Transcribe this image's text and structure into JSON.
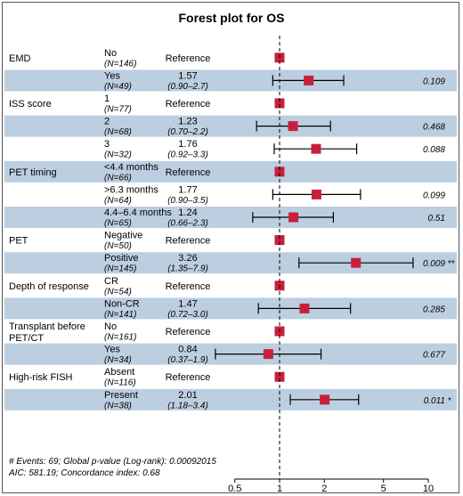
{
  "chart_data": {
    "type": "forest",
    "title": "Forest plot for OS",
    "x_scale": "log",
    "xlim": [
      0.5,
      10
    ],
    "x_ticks": [
      "0.5",
      "1",
      "2",
      "5",
      "10"
    ],
    "reference_line": 1,
    "colors": {
      "marker": "#c8203a",
      "band": "#bccfe0",
      "line": "#000000"
    },
    "groups": [
      {
        "name": "EMD",
        "rows": [
          {
            "level": "No",
            "n": "(N=146)",
            "est": "Reference",
            "ci": "",
            "p": "",
            "hr": 1,
            "lo": null,
            "hi": null,
            "sig": ""
          },
          {
            "level": "Yes",
            "n": "(N=49)",
            "est": "1.57",
            "ci": "(0.90–2.7)",
            "p": "0.109",
            "hr": 1.57,
            "lo": 0.9,
            "hi": 2.7,
            "sig": ""
          }
        ]
      },
      {
        "name": "ISS score",
        "rows": [
          {
            "level": "1",
            "n": "(N=77)",
            "est": "Reference",
            "ci": "",
            "p": "",
            "hr": 1,
            "lo": null,
            "hi": null,
            "sig": ""
          },
          {
            "level": "2",
            "n": "(N=68)",
            "est": "1.23",
            "ci": "(0.70–2.2)",
            "p": "0.468",
            "hr": 1.23,
            "lo": 0.7,
            "hi": 2.2,
            "sig": ""
          },
          {
            "level": "3",
            "n": "(N=32)",
            "est": "1.76",
            "ci": "(0.92–3.3)",
            "p": "0.088",
            "hr": 1.76,
            "lo": 0.92,
            "hi": 3.3,
            "sig": ""
          }
        ]
      },
      {
        "name": "PET timing",
        "rows": [
          {
            "level": "<4.4 months",
            "n": "(N=66)",
            "est": "Reference",
            "ci": "",
            "p": "",
            "hr": 1,
            "lo": null,
            "hi": null,
            "sig": ""
          },
          {
            "level": ">6.3 months",
            "n": "(N=64)",
            "est": "1.77",
            "ci": "(0.90–3.5)",
            "p": "0.099",
            "hr": 1.77,
            "lo": 0.9,
            "hi": 3.5,
            "sig": ""
          },
          {
            "level": "4.4–6.4 months",
            "n": "(N=65)",
            "est": "1.24",
            "ci": "(0.66–2.3)",
            "p": "0.51",
            "hr": 1.24,
            "lo": 0.66,
            "hi": 2.3,
            "sig": ""
          }
        ]
      },
      {
        "name": "PET",
        "rows": [
          {
            "level": "Negative",
            "n": "(N=50)",
            "est": "Reference",
            "ci": "",
            "p": "",
            "hr": 1,
            "lo": null,
            "hi": null,
            "sig": ""
          },
          {
            "level": "Positive",
            "n": "(N=145)",
            "est": "3.26",
            "ci": "(1.35–7.9)",
            "p": "0.009",
            "hr": 3.26,
            "lo": 1.35,
            "hi": 7.9,
            "sig": "**"
          }
        ]
      },
      {
        "name": "Depth of response",
        "rows": [
          {
            "level": "CR",
            "n": "(N=54)",
            "est": "Reference",
            "ci": "",
            "p": "",
            "hr": 1,
            "lo": null,
            "hi": null,
            "sig": ""
          },
          {
            "level": "Non-CR",
            "n": "(N=141)",
            "est": "1.47",
            "ci": "(0.72–3.0)",
            "p": "0.285",
            "hr": 1.47,
            "lo": 0.72,
            "hi": 3.0,
            "sig": ""
          }
        ]
      },
      {
        "name": "Transplant before PET/CT",
        "rows": [
          {
            "level": "No",
            "n": "(N=161)",
            "est": "Reference",
            "ci": "",
            "p": "",
            "hr": 1,
            "lo": null,
            "hi": null,
            "sig": ""
          },
          {
            "level": "Yes",
            "n": "(N=34)",
            "est": "0.84",
            "ci": "(0.37–1.9)",
            "p": "0.677",
            "hr": 0.84,
            "lo": 0.37,
            "hi": 1.9,
            "sig": ""
          }
        ]
      },
      {
        "name": "High-risk FISH",
        "rows": [
          {
            "level": "Absent",
            "n": "(N=116)",
            "est": "Reference",
            "ci": "",
            "p": "",
            "hr": 1,
            "lo": null,
            "hi": null,
            "sig": ""
          },
          {
            "level": "Present",
            "n": "(N=38)",
            "est": "2.01",
            "ci": "(1.18–3.4)",
            "p": "0.011",
            "hr": 2.01,
            "lo": 1.18,
            "hi": 3.4,
            "sig": "*"
          }
        ]
      }
    ],
    "footnotes": [
      "# Events: 69; Global p-value (Log-rank): 0.00092015",
      "AIC: 581.19; Concordance index: 0.68"
    ]
  }
}
